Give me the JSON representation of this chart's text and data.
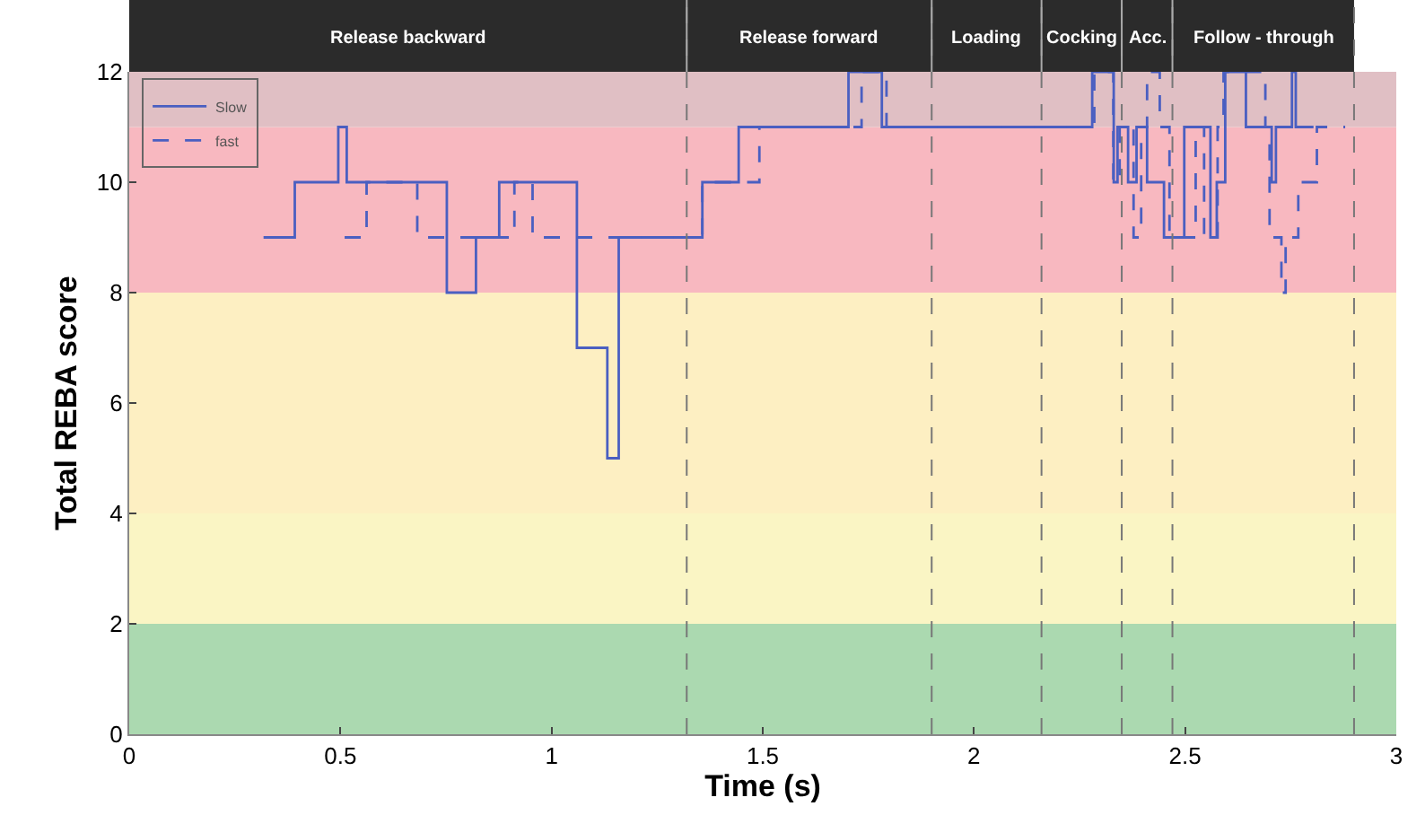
{
  "chart_data": {
    "type": "step",
    "xlabel": "Time (s)",
    "ylabel": "Total REBA score",
    "xlim": [
      0,
      3
    ],
    "xticks": [
      0,
      0.5,
      1,
      1.5,
      2,
      2.5,
      3
    ],
    "ylim": [
      0,
      12
    ],
    "yticks": [
      0,
      2,
      4,
      6,
      8,
      10,
      12
    ],
    "grid": false,
    "legend": "top left",
    "series": [
      {
        "name": "Slow",
        "color": "#4a5fc1",
        "line_style": "solid",
        "x": [
          0.318,
          0.392,
          0.495,
          0.515,
          0.752,
          0.821,
          0.876,
          1.06,
          1.132,
          1.159,
          1.357,
          1.443,
          1.703,
          1.782,
          2.28,
          2.331,
          2.34,
          2.365,
          2.385,
          2.41,
          2.45,
          2.498,
          2.56,
          2.575,
          2.595,
          2.644,
          2.705,
          2.715,
          2.753,
          2.762,
          2.804
        ],
        "values": [
          9,
          10,
          11,
          10,
          8,
          9,
          10,
          7,
          5,
          9,
          10,
          11,
          12,
          11,
          12,
          10,
          11,
          10,
          11,
          10,
          9,
          11,
          9,
          10,
          12,
          11,
          10,
          11,
          12,
          11,
          11
        ]
      },
      {
        "name": "fast",
        "color": "#4a5fc1",
        "line_style": "dashed",
        "x": [
          0.51,
          0.562,
          0.682,
          0.912,
          0.955,
          1.357,
          1.492,
          1.734,
          1.793,
          2.285,
          2.33,
          2.345,
          2.378,
          2.396,
          2.41,
          2.44,
          2.463,
          2.525,
          2.545,
          2.577,
          2.591,
          2.69,
          2.7,
          2.728,
          2.738,
          2.768,
          2.812,
          2.879
        ],
        "values": [
          9,
          10,
          9,
          10,
          9,
          10,
          11,
          12,
          11,
          12,
          10,
          11,
          9,
          11,
          12,
          11,
          9,
          11,
          9,
          11,
          12,
          11,
          9,
          8,
          9,
          10,
          11,
          11
        ]
      }
    ],
    "bands": [
      {
        "axis": "y",
        "from": 0,
        "to": 2,
        "color": "#abd9b0"
      },
      {
        "axis": "y",
        "from": 2,
        "to": 4,
        "color": "#faf5c4"
      },
      {
        "axis": "y",
        "from": 4,
        "to": 8,
        "color": "#fdefc2"
      },
      {
        "axis": "y",
        "from": 8,
        "to": 11,
        "color": "#f8b8c0"
      },
      {
        "axis": "y",
        "from": 11,
        "to": 12,
        "color": "#e0bfc4"
      }
    ],
    "ref_lines": [
      {
        "axis": "x",
        "value": 1.32,
        "line_style": "dashed",
        "color": "#777777"
      },
      {
        "axis": "x",
        "value": 1.9,
        "line_style": "dashed",
        "color": "#777777"
      },
      {
        "axis": "x",
        "value": 2.16,
        "line_style": "dashed",
        "color": "#777777"
      },
      {
        "axis": "x",
        "value": 2.35,
        "line_style": "dashed",
        "color": "#777777"
      },
      {
        "axis": "x",
        "value": 2.47,
        "line_style": "dashed",
        "color": "#777777"
      },
      {
        "axis": "x",
        "value": 2.9,
        "line_style": "dashed",
        "color": "#777777"
      }
    ],
    "annotations": [
      "Release backward",
      "Release forward",
      "Loading",
      "Cocking",
      "Acc.",
      "Follow - through"
    ]
  }
}
